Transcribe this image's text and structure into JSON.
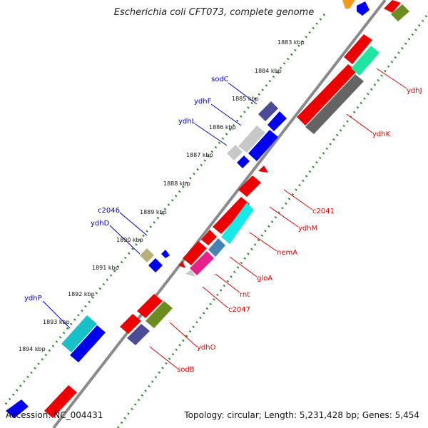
{
  "title": "Escherichia coli CFT073, complete genome",
  "footer": {
    "accession": "Accession: NC_004431",
    "topology": "Topology: circular; Length: 5,231,428 bp; Genes: 5,454"
  },
  "colors": {
    "backbone": "#8a8a8a",
    "tick_dots": "#2e8b2e",
    "label_line_blue": "#0000cc",
    "label_line_red": "#e00000"
  },
  "ticks": [
    "1883 kbp",
    "1884 kbp",
    "1885 kbp",
    "1886 kbp",
    "1887 kbp",
    "1888 kbp",
    "1889 kbp",
    "1890 kbp",
    "1891 kbp",
    "1892 kbp",
    "1893 kbp",
    "1894 kbp"
  ],
  "forward_labels": [
    "sodC",
    "ydhF",
    "ydhL",
    "c2046",
    "ydhD",
    "ydhP"
  ],
  "reverse_labels": [
    "ydhJ",
    "ydhK",
    "c2041",
    "ydhM",
    "nemA",
    "gloA",
    "rnt",
    "c2047",
    "ydhO",
    "sodB"
  ]
}
